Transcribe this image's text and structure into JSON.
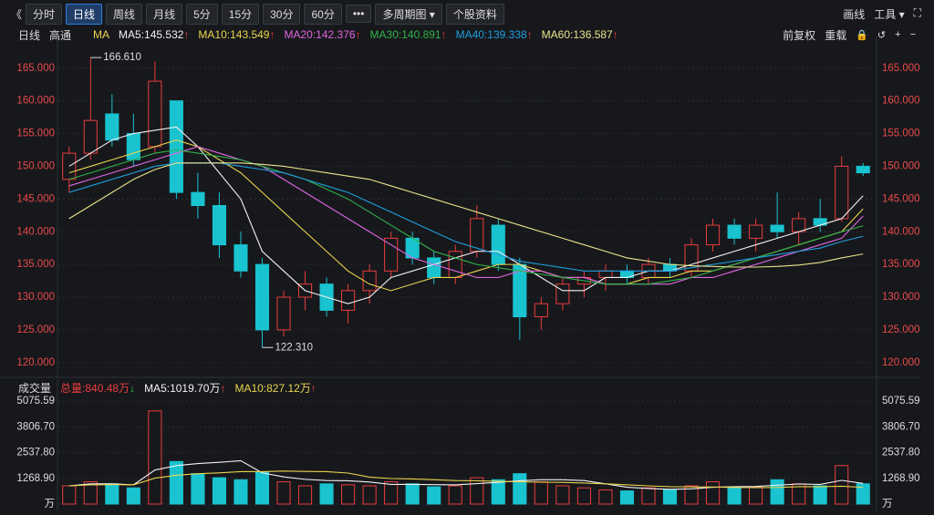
{
  "toolbar": {
    "back": "《",
    "left": [
      "分时",
      "日线",
      "周线",
      "月线",
      "5分",
      "15分",
      "30分",
      "60分",
      "•••",
      "多周期图 ▾",
      "个股资料"
    ],
    "active_index": 1,
    "right": [
      "画线",
      "工具 ▾",
      "⛶"
    ]
  },
  "chart_data": {
    "type": "candlestick",
    "header": {
      "period": "日线",
      "name": "高通",
      "indicator": "MA",
      "right": [
        "前复权",
        "重载"
      ],
      "icons": [
        "🔒",
        "↺",
        "+",
        "−"
      ]
    },
    "up_color": "#ea3d3d",
    "down_color": "#19c3cf",
    "open": [
      148,
      152,
      158,
      155,
      153,
      160,
      146,
      144,
      138,
      135,
      125,
      130,
      132,
      128,
      131,
      134,
      139,
      136,
      133,
      137,
      141,
      135,
      127,
      129,
      132,
      133,
      134,
      133,
      135,
      134,
      138,
      141,
      139,
      141,
      140,
      142,
      142,
      150
    ],
    "high": [
      153,
      166.61,
      161,
      158,
      166,
      160,
      149,
      146,
      140,
      136,
      131,
      134,
      133,
      132,
      135,
      140,
      140,
      137,
      138,
      144,
      142,
      136,
      130,
      133,
      134,
      135,
      135,
      136,
      136,
      139,
      142,
      142,
      142,
      146,
      143,
      145,
      151.5,
      150.5
    ],
    "low": [
      146,
      151,
      153,
      150,
      152,
      145,
      142,
      136,
      133,
      122.31,
      124,
      128,
      127,
      126,
      129,
      133,
      135,
      132,
      132,
      136,
      134,
      123.5,
      125,
      128,
      130,
      131,
      132,
      132,
      133,
      133,
      137,
      138,
      137,
      139,
      138,
      140,
      141.5,
      148.5
    ],
    "close": [
      152,
      157,
      154,
      151,
      163,
      146,
      144,
      138,
      134,
      125,
      130,
      132,
      128,
      131,
      134,
      139,
      136,
      133,
      137,
      142,
      135,
      127,
      129,
      132,
      133,
      134,
      133,
      135,
      134,
      138,
      141,
      139,
      141,
      140,
      142,
      141,
      150,
      149
    ],
    "ylim": [
      119,
      169
    ],
    "yticks": [
      {
        "value": 120,
        "label": "120.000"
      },
      {
        "value": 125,
        "label": "125.000"
      },
      {
        "value": 130,
        "label": "130.000"
      },
      {
        "value": 135,
        "label": "135.000"
      },
      {
        "value": 140,
        "label": "140.000"
      },
      {
        "value": 145,
        "label": "145.000"
      },
      {
        "value": 150,
        "label": "150.000"
      },
      {
        "value": 155,
        "label": "155.000"
      },
      {
        "value": 160,
        "label": "160.000"
      },
      {
        "value": 165,
        "label": "165.000"
      }
    ],
    "ma": [
      {
        "label": "MA5:145.532",
        "arrow": "↑",
        "color": "#f2f2f2",
        "values": [
          150,
          152,
          154,
          155,
          155.5,
          156,
          153,
          149,
          145,
          137,
          134,
          131,
          130,
          129,
          130,
          133,
          134,
          135,
          136,
          137,
          137,
          135,
          133,
          131,
          131,
          133,
          133,
          134,
          134,
          135,
          136,
          137,
          138,
          139,
          140,
          141,
          142,
          145.5
        ]
      },
      {
        "label": "MA10:143.549",
        "arrow": "↑",
        "color": "#e8d44d",
        "values": [
          149,
          150,
          151,
          152,
          153,
          154,
          153,
          151,
          149,
          146,
          143,
          140,
          137,
          134,
          132,
          131,
          132,
          133,
          133,
          134,
          135,
          135,
          134,
          133,
          133,
          132,
          132,
          133,
          133,
          134,
          134,
          135,
          136,
          137,
          138,
          139,
          140,
          143.5
        ]
      },
      {
        "label": "MA20:142.376",
        "arrow": "↑",
        "color": "#e066e0",
        "values": [
          147,
          148,
          149,
          150,
          151,
          152,
          153,
          152,
          151,
          150,
          148,
          146,
          144,
          142,
          140,
          138,
          136,
          135,
          134,
          133,
          133,
          134,
          134,
          133,
          133,
          132,
          132,
          132,
          132,
          133,
          133,
          134,
          135,
          136,
          137,
          138,
          139,
          142.4
        ]
      },
      {
        "label": "MA30:140.891",
        "arrow": "↑",
        "color": "#2fb34a",
        "values": [
          148,
          149,
          150,
          151,
          152,
          152.5,
          152,
          151.5,
          151,
          150,
          149,
          148,
          146.5,
          145,
          143,
          141,
          139,
          137,
          136,
          135,
          134.5,
          134,
          133.5,
          133,
          132.5,
          132,
          132,
          132,
          132.5,
          133,
          134,
          135,
          136,
          137,
          138,
          139,
          140,
          140.9
        ]
      },
      {
        "label": "MA40:139.338",
        "arrow": "↑",
        "color": "#1e9fe0",
        "values": [
          146,
          147,
          148,
          149,
          150,
          150.5,
          150.5,
          150.5,
          150,
          149.5,
          149,
          148,
          147,
          146,
          144.5,
          143,
          141.5,
          140,
          138.5,
          137.5,
          136.5,
          135.5,
          135,
          134.5,
          134,
          134,
          134,
          134,
          134,
          134.5,
          135,
          135.5,
          136,
          136.5,
          137,
          137.5,
          138.5,
          139.3
        ]
      },
      {
        "label": "MA60:136.587",
        "arrow": "↑",
        "color": "#ebe38a",
        "values": [
          142,
          144,
          146,
          148,
          149.5,
          150.5,
          150.5,
          150.5,
          150.5,
          150.3,
          150,
          149.5,
          149,
          148.5,
          148,
          147,
          146,
          145,
          144,
          143,
          142,
          141,
          140,
          139,
          138,
          137,
          136,
          135.5,
          135,
          134.8,
          134.7,
          134.6,
          134.6,
          134.7,
          134.9,
          135.3,
          136,
          136.6
        ]
      }
    ],
    "annotations": {
      "high": "166.610",
      "low": "122.310"
    },
    "volume": {
      "title": "成交量",
      "total": "总量:840.48万",
      "total_arrow": "↓",
      "values": [
        900,
        1100,
        1000,
        800,
        4600,
        2100,
        1500,
        1300,
        1200,
        1600,
        1100,
        900,
        1000,
        950,
        900,
        1100,
        1000,
        850,
        900,
        1300,
        1200,
        1500,
        1100,
        900,
        800,
        700,
        650,
        800,
        700,
        900,
        1100,
        800,
        850,
        1200,
        1000,
        900,
        1900,
        1000
      ],
      "ylim": [
        0,
        5400
      ],
      "yticks": [
        {
          "value": 0,
          "label": "万"
        },
        {
          "value": 1268.9,
          "label": "1268.90"
        },
        {
          "value": 2537.8,
          "label": "2537.80"
        },
        {
          "value": 3806.7,
          "label": "3806.70"
        },
        5075.59
      ],
      "ma": [
        {
          "label": "MA5:1019.70万",
          "arrow": "↑",
          "color": "#f2f2f2",
          "values": [
            900,
            1000,
            1000,
            950,
            1680,
            1900,
            2000,
            2060,
            2140,
            1540,
            1340,
            1220,
            1160,
            1150,
            1090,
            970,
            970,
            960,
            950,
            1010,
            1070,
            1150,
            1200,
            1200,
            1160,
            1000,
            830,
            770,
            730,
            750,
            830,
            860,
            870,
            930,
            990,
            970,
            1170,
            1019.7
          ]
        },
        {
          "label": "MA10:827.12万",
          "arrow": "↑",
          "color": "#e8d44d",
          "values": [
            900,
            950,
            960,
            950,
            1280,
            1420,
            1500,
            1540,
            1600,
            1600,
            1630,
            1610,
            1600,
            1530,
            1330,
            1260,
            1240,
            1200,
            1160,
            1150,
            1120,
            1100,
            1080,
            1070,
            1040,
            1000,
            950,
            900,
            860,
            850,
            840,
            820,
            810,
            820,
            860,
            860,
            880,
            827.12
          ]
        }
      ]
    }
  }
}
